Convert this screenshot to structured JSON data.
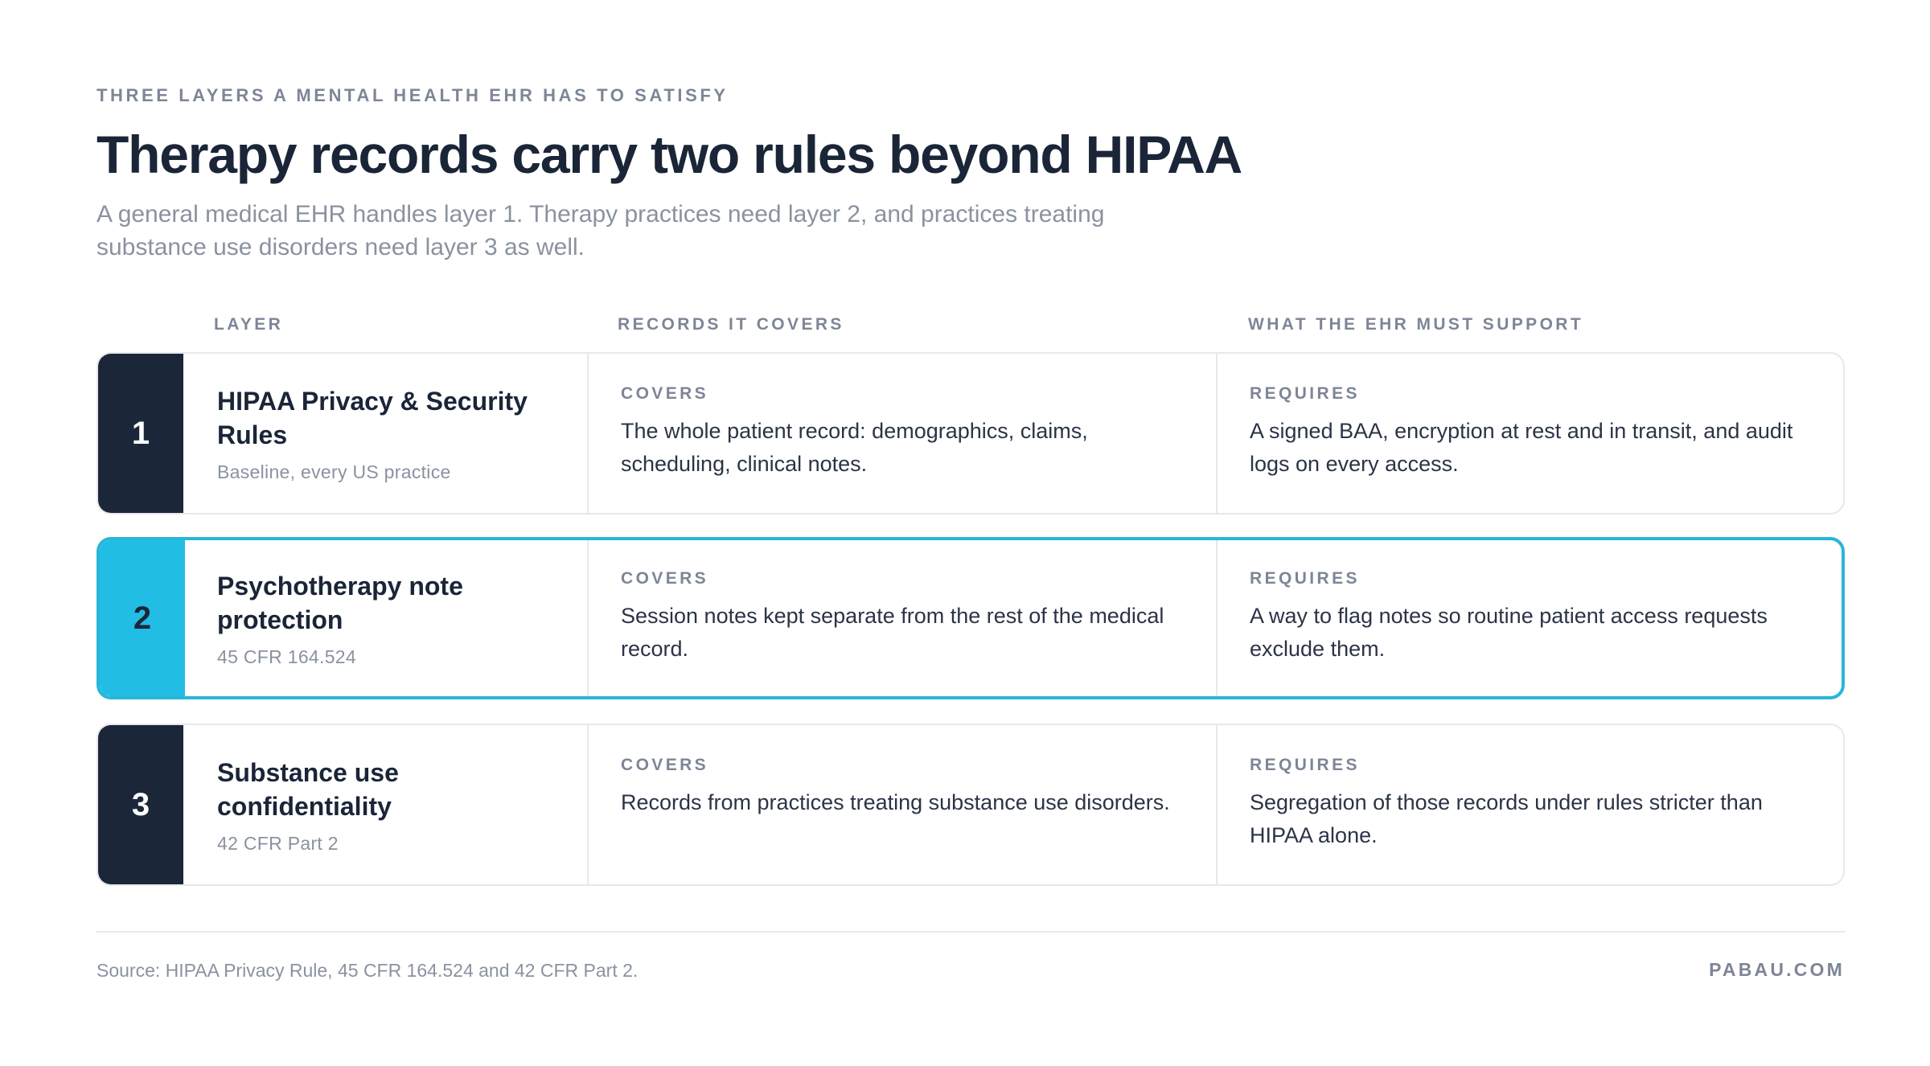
{
  "header": {
    "eyebrow": "THREE LAYERS A MENTAL HEALTH EHR HAS TO SATISFY",
    "title": "Therapy records carry two rules beyond HIPAA",
    "subtitle": "A general medical EHR handles layer 1. Therapy practices need layer 2, and practices treating substance use disorders need layer 3 as well."
  },
  "columns": {
    "layer": "LAYER",
    "records": "RECORDS IT COVERS",
    "support": "WHAT THE EHR MUST SUPPORT"
  },
  "rows": [
    {
      "number": "1",
      "name": "HIPAA Privacy & Security Rules",
      "sub": "Baseline, every US practice",
      "covers_label": "COVERS",
      "covers": "The whole patient record: demographics, claims, scheduling, clinical notes.",
      "requires_label": "REQUIRES",
      "requires": "A signed BAA, encryption at rest and in transit, and audit logs on every access.",
      "highlighted": false
    },
    {
      "number": "2",
      "name": "Psychotherapy note protection",
      "sub": "45 CFR 164.524",
      "covers_label": "COVERS",
      "covers": "Session notes kept separate from the rest of the medical record.",
      "requires_label": "REQUIRES",
      "requires": "A way to flag notes so routine patient access requests exclude them.",
      "highlighted": true
    },
    {
      "number": "3",
      "name": "Substance use confidentiality",
      "sub": "42 CFR Part 2",
      "covers_label": "COVERS",
      "covers": "Records from practices treating substance use disorders.",
      "requires_label": "REQUIRES",
      "requires": "Segregation of those records under rules stricter than HIPAA alone.",
      "highlighted": false
    }
  ],
  "footer": {
    "source": "Source: HIPAA Privacy Rule, 45 CFR 164.524 and 42 CFR Part 2.",
    "brand": "PABAU.COM"
  },
  "colors": {
    "navy": "#1c2639",
    "accent": "#22bde4",
    "muted": "#8a92a0"
  }
}
